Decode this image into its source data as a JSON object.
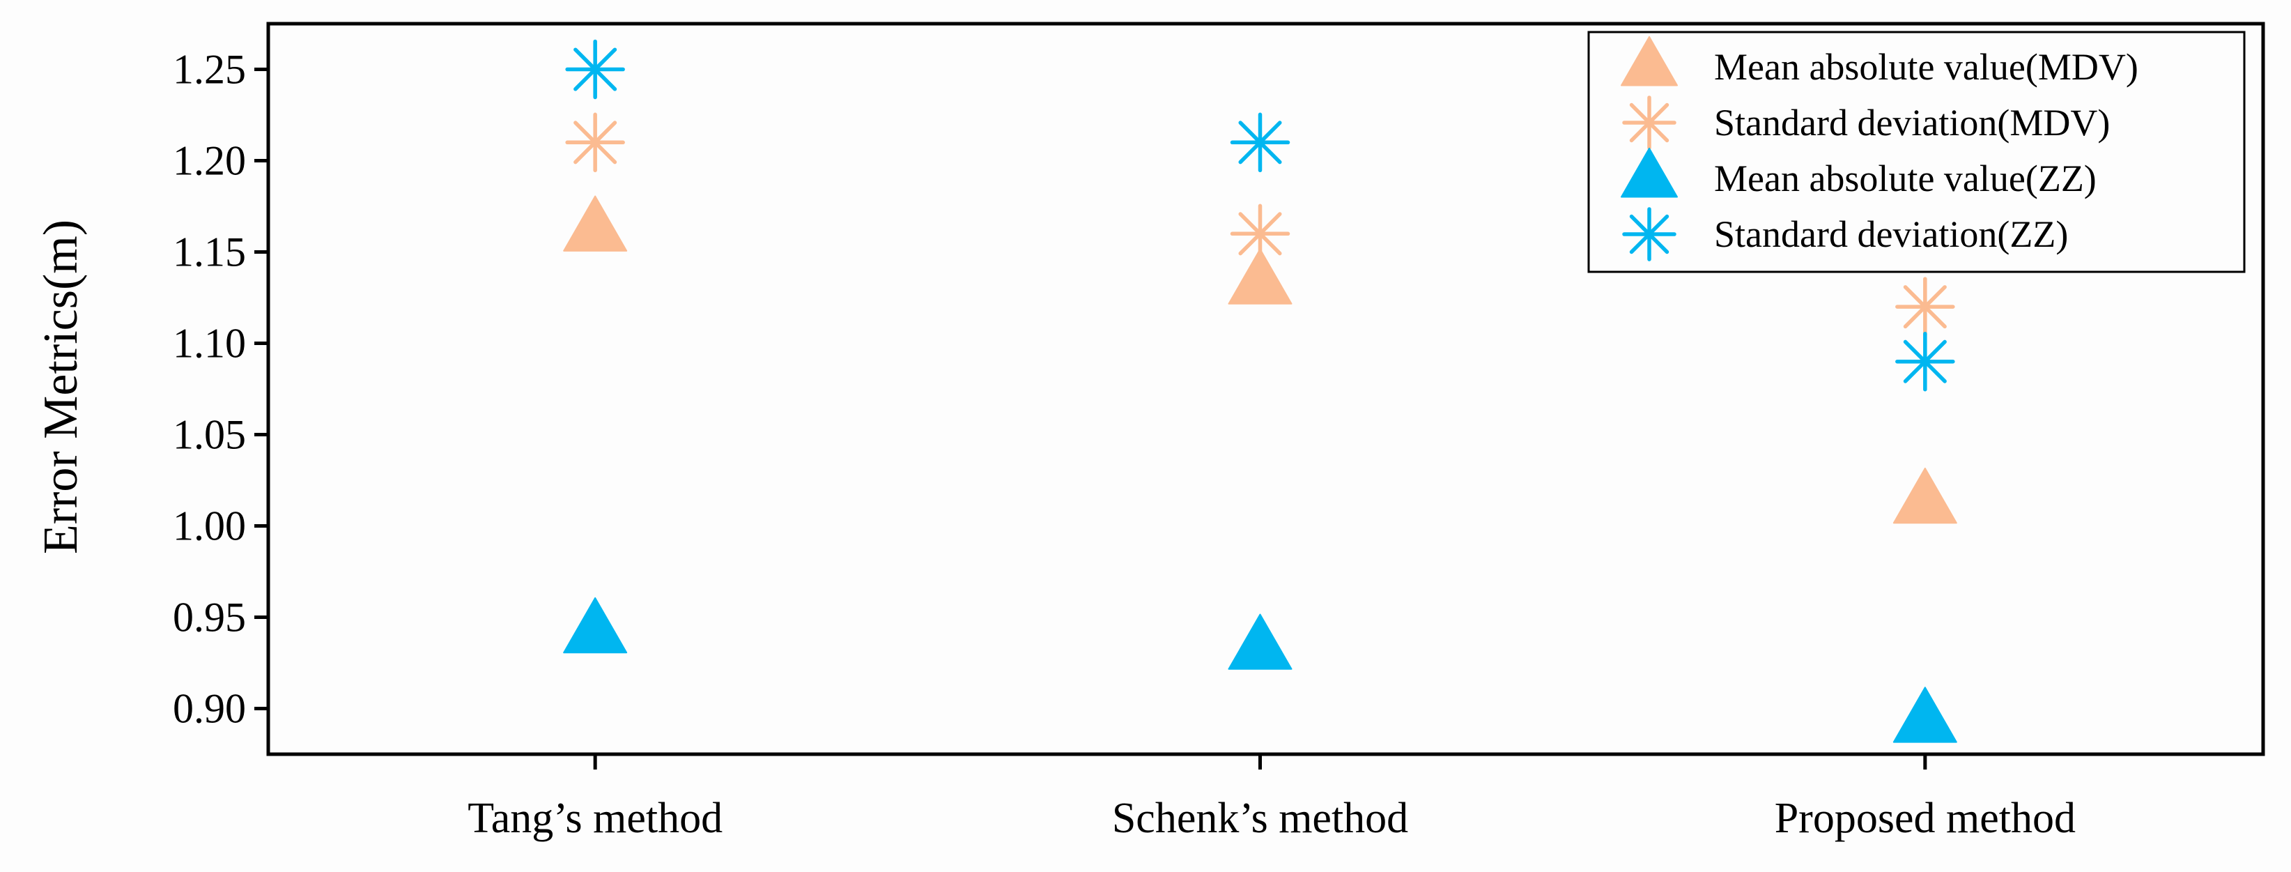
{
  "chart_data": {
    "type": "scatter",
    "title": "",
    "xlabel": "",
    "ylabel": "Error Metrics(m)",
    "categories": [
      "Tang’s method",
      "Schenk’s method",
      "Proposed method"
    ],
    "ylim": [
      0.875,
      1.275
    ],
    "yticks": [
      0.9,
      0.95,
      1.0,
      1.05,
      1.1,
      1.15,
      1.2,
      1.25
    ],
    "ytick_labels": [
      "0.90",
      "0.95",
      "1.00",
      "1.05",
      "1.10",
      "1.15",
      "1.20",
      "1.25"
    ],
    "legend_position": "top-right",
    "series": [
      {
        "name": "Mean absolute value(MDV)",
        "marker": "triangle",
        "color": "#FBBB91",
        "values": [
          1.162,
          1.133,
          1.013
        ]
      },
      {
        "name": "Standard deviation(MDV)",
        "marker": "asterisk",
        "color": "#FBBB91",
        "values": [
          1.21,
          1.16,
          1.12
        ]
      },
      {
        "name": "Mean absolute value(ZZ)",
        "marker": "triangle",
        "color": "#00B6F0",
        "values": [
          0.942,
          0.933,
          0.893
        ]
      },
      {
        "name": "Standard deviation(ZZ)",
        "marker": "asterisk",
        "color": "#00B6F0",
        "values": [
          1.25,
          1.21,
          1.09
        ]
      }
    ]
  }
}
